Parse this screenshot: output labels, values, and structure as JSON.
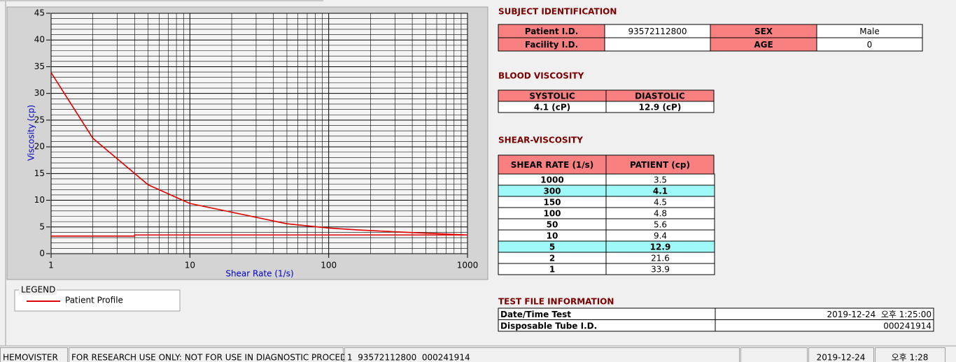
{
  "chart_data": {
    "type": "line",
    "xscale": "log",
    "xlabel": "Shear Rate (1/s)",
    "ylabel": "Viscosity (cp)",
    "xlim": [
      1,
      1000
    ],
    "xticks": [
      1,
      10,
      100,
      1000
    ],
    "ylim": [
      0,
      45
    ],
    "yticks": [
      0,
      5,
      10,
      15,
      20,
      25,
      30,
      35,
      40,
      45
    ],
    "grid": true,
    "legend_title": "LEGEND",
    "series": [
      {
        "name": "Patient Profile",
        "color": "#e00000",
        "x": [
          1000,
          300,
          150,
          100,
          50,
          10,
          5,
          2,
          1
        ],
        "values": [
          3.5,
          4.1,
          4.5,
          4.8,
          5.6,
          9.4,
          12.9,
          21.6,
          33.9
        ]
      },
      {
        "color": "#e00000",
        "x": [
          1,
          4,
          4,
          1000
        ],
        "values": [
          3.3,
          3.3,
          3.5,
          3.5
        ]
      }
    ]
  },
  "subject": {
    "title": "SUBJECT IDENTIFICATION",
    "fields": [
      {
        "label": "Patient I.D.",
        "value": "93572112800"
      },
      {
        "label": "SEX",
        "value": "Male"
      },
      {
        "label": "Facility I.D."
      },
      {
        "label": "AGE",
        "value": 0
      }
    ]
  },
  "blood": {
    "title": "BLOOD VISCOSITY",
    "columns": [
      "SYSTOLIC",
      "DIASTOLIC"
    ],
    "values": [
      "4.1 (cP)",
      "12.9 (cP)"
    ]
  },
  "shear": {
    "title": "SHEAR-VISCOSITY",
    "columns": [
      "SHEAR RATE (1/s)",
      "PATIENT (cp)"
    ],
    "highlighted": [
      1,
      6
    ],
    "highlight_color": "#9ff9f9"
  },
  "test_file": {
    "title": "TEST FILE INFORMATION",
    "rows": [
      [
        "Date/Time Test",
        "2019-12-24  오후 1:25:00"
      ],
      [
        "Disposable Tube I.D.",
        "000241914"
      ]
    ]
  },
  "status": [
    "HEMOVISTER",
    "FOR RESEARCH USE ONLY: NOT FOR USE IN DIAGNOSTIC PROCEDURES",
    "1  93572112800  000241914",
    "2019-12-24",
    "오후 1:28"
  ]
}
